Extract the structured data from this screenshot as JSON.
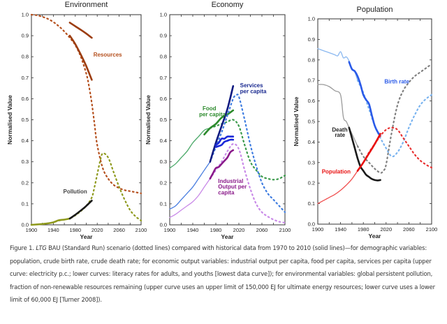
{
  "caption": {
    "prefix": "Figure 1. ",
    "italic": "LTG",
    "text": " BAU (Standard Run) scenario (dotted lines) compared with historical data from 1970 to 2010 (solid lines)—for demographic variables: population, crude birth rate, crude death rate; for economic output variables: industrial output per capita, food per capita, services per capita (upper curve: electricity p.c.; lower curves: literacy rates for adults, and youths [lowest data curve]); for environmental variables: global persistent pollution, fraction of non-renewable resources remaining (upper curve uses an upper limit of 150,000 EJ for ultimate energy resources; lower curve uses a lower limit of 60,000 EJ [Turner 2008])."
  },
  "chart_data": [
    {
      "id": "environment",
      "type": "line",
      "title": "Environment",
      "xlabel": "Year",
      "ylabel": "Normalised Value",
      "xlim": [
        1900,
        2100
      ],
      "ylim": [
        0,
        1
      ],
      "xticks": [
        1900,
        1940,
        1980,
        2020,
        2060,
        2100
      ],
      "yticks": [
        "0.0",
        "0.1",
        "0.2",
        "0.3",
        "0.4",
        "0.5",
        "0.6",
        "0.7",
        "0.8",
        "0.9",
        "1.0"
      ],
      "series": [
        {
          "name": "Resources (model)",
          "style": "dotted",
          "color": "#b5501e",
          "x": [
            1900,
            1910,
            1920,
            1930,
            1940,
            1950,
            1960,
            1970,
            1980,
            1990,
            2000,
            2005,
            2010,
            2015,
            2020,
            2030,
            2040,
            2050,
            2060,
            2070,
            2080,
            2090,
            2100
          ],
          "y": [
            1.0,
            0.997,
            0.99,
            0.98,
            0.965,
            0.945,
            0.92,
            0.89,
            0.855,
            0.8,
            0.72,
            0.66,
            0.58,
            0.48,
            0.38,
            0.27,
            0.22,
            0.19,
            0.175,
            0.165,
            0.16,
            0.155,
            0.15
          ]
        },
        {
          "name": "Resources (data, upper)",
          "style": "solid",
          "color": "#9c3d10",
          "x": [
            1970,
            1980,
            1990,
            2000,
            2010
          ],
          "y": [
            0.962,
            0.945,
            0.928,
            0.91,
            0.89
          ]
        },
        {
          "name": "Resources (data, lower)",
          "style": "solid",
          "color": "#9c3d10",
          "x": [
            1970,
            1980,
            1990,
            2000,
            2010
          ],
          "y": [
            0.9,
            0.86,
            0.81,
            0.755,
            0.69
          ]
        },
        {
          "name": "Pollution (model)",
          "style": "dotted",
          "color": "#8f9a1e",
          "x": [
            1900,
            1910,
            1920,
            1930,
            1940,
            1950,
            1960,
            1970,
            1980,
            1990,
            2000,
            2010,
            2015,
            2020,
            2025,
            2030,
            2040,
            2050,
            2060,
            2070,
            2080,
            2090,
            2100
          ],
          "y": [
            0.0,
            0.002,
            0.004,
            0.007,
            0.012,
            0.02,
            0.025,
            0.03,
            0.045,
            0.065,
            0.09,
            0.13,
            0.18,
            0.24,
            0.3,
            0.34,
            0.32,
            0.25,
            0.18,
            0.12,
            0.07,
            0.04,
            0.02
          ]
        },
        {
          "name": "Pollution (data)",
          "style": "solid",
          "color": "#8f9a1e",
          "x": [
            1900,
            1910,
            1920,
            1930,
            1940,
            1950,
            1960,
            1970
          ],
          "y": [
            0.0,
            0.002,
            0.004,
            0.007,
            0.012,
            0.022,
            0.025,
            0.03
          ]
        },
        {
          "name": "Pollution (data 1970-2010)",
          "style": "solid",
          "color": "#1a1a1a",
          "x": [
            1970,
            1980,
            1990,
            2000,
            2010
          ],
          "y": [
            0.03,
            0.048,
            0.068,
            0.09,
            0.115
          ]
        }
      ],
      "labels": [
        {
          "text": "Resources",
          "color": "#b5501e",
          "x": 2013,
          "y": 0.8
        },
        {
          "text": "Pollution",
          "color": "#444444",
          "x": 1958,
          "y": 0.15
        }
      ]
    },
    {
      "id": "economy",
      "type": "line",
      "title": "Economy",
      "xlabel": "Year",
      "ylabel": "Normalised Value",
      "xlim": [
        1900,
        2100
      ],
      "ylim": [
        0,
        1
      ],
      "xticks": [
        1900,
        1940,
        1980,
        2020,
        2060,
        2100
      ],
      "yticks": [
        "0.0",
        "0.1",
        "0.2",
        "0.3",
        "0.4",
        "0.5",
        "0.6",
        "0.7",
        "0.8",
        "0.9",
        "1.0"
      ],
      "series": [
        {
          "name": "Food per capita (model)",
          "style": "dotted",
          "color": "#3a9a4a",
          "x": [
            1970,
            1980,
            1990,
            2000,
            2010,
            2020,
            2030,
            2040,
            2050,
            2060,
            2070,
            2080,
            2090,
            2100
          ],
          "y": [
            0.46,
            0.47,
            0.48,
            0.49,
            0.5,
            0.47,
            0.38,
            0.3,
            0.26,
            0.23,
            0.22,
            0.215,
            0.22,
            0.235
          ]
        },
        {
          "name": "Food per capita (model, 1900-1970)",
          "style": "solid-thin",
          "color": "#4aa868",
          "x": [
            1900,
            1910,
            1920,
            1930,
            1940,
            1950,
            1960,
            1970
          ],
          "y": [
            0.27,
            0.29,
            0.32,
            0.35,
            0.39,
            0.42,
            0.45,
            0.46
          ]
        },
        {
          "name": "Food per capita (data)",
          "style": "solid",
          "color": "#2c8a2c",
          "x": [
            1960,
            1970,
            1980,
            1990,
            2000,
            2010
          ],
          "y": [
            0.43,
            0.46,
            0.48,
            0.51,
            0.525,
            0.545
          ]
        },
        {
          "name": "Services per capita (model)",
          "style": "dotted",
          "color": "#3f7de0",
          "x": [
            1970,
            1980,
            1990,
            2000,
            2010,
            2015,
            2020,
            2030,
            2040,
            2050,
            2060,
            2070,
            2080,
            2090,
            2100
          ],
          "y": [
            0.3,
            0.37,
            0.44,
            0.52,
            0.6,
            0.615,
            0.61,
            0.5,
            0.38,
            0.28,
            0.2,
            0.15,
            0.12,
            0.09,
            0.06
          ]
        },
        {
          "name": "Services per capita (model, 1900-1970)",
          "style": "solid-thin",
          "color": "#4a7ee0",
          "x": [
            1900,
            1910,
            1920,
            1930,
            1940,
            1950,
            1960,
            1970
          ],
          "y": [
            0.075,
            0.09,
            0.12,
            0.15,
            0.18,
            0.22,
            0.26,
            0.3
          ]
        },
        {
          "name": "Electricity p.c. (data)",
          "style": "solid",
          "color": "#101a80",
          "x": [
            1970,
            1980,
            1990,
            2000,
            2010
          ],
          "y": [
            0.3,
            0.39,
            0.47,
            0.55,
            0.66
          ]
        },
        {
          "name": "Literacy adults (data)",
          "style": "solid",
          "color": "#1a28d8",
          "x": [
            1980,
            1985,
            1990,
            1995,
            2000,
            2005,
            2010
          ],
          "y": [
            0.38,
            0.39,
            0.41,
            0.41,
            0.42,
            0.42,
            0.42
          ]
        },
        {
          "name": "Literacy youths (data)",
          "style": "solid",
          "color": "#1a28d8",
          "x": [
            1980,
            1985,
            1990,
            1995,
            2000,
            2005,
            2010
          ],
          "y": [
            0.37,
            0.375,
            0.38,
            0.395,
            0.4,
            0.405,
            0.405
          ]
        },
        {
          "name": "Industrial output per capita (model)",
          "style": "dotted",
          "color": "#c98ae8",
          "x": [
            1970,
            1980,
            1990,
            2000,
            2010,
            2020,
            2030,
            2040,
            2050,
            2060,
            2070,
            2080,
            2090,
            2100
          ],
          "y": [
            0.22,
            0.26,
            0.3,
            0.35,
            0.385,
            0.36,
            0.26,
            0.17,
            0.1,
            0.06,
            0.04,
            0.025,
            0.015,
            0.01
          ]
        },
        {
          "name": "Industrial output per capita (model, 1900-1970)",
          "style": "solid-thin",
          "color": "#c98ae8",
          "x": [
            1900,
            1910,
            1920,
            1930,
            1940,
            1950,
            1960,
            1970
          ],
          "y": [
            0.035,
            0.05,
            0.07,
            0.09,
            0.11,
            0.14,
            0.18,
            0.22
          ]
        },
        {
          "name": "Industrial output per capita (data)",
          "style": "solid",
          "color": "#8a1a8a",
          "x": [
            1970,
            1975,
            1980,
            1985,
            1990,
            1995,
            2000,
            2005,
            2010
          ],
          "y": [
            0.22,
            0.245,
            0.27,
            0.275,
            0.29,
            0.305,
            0.32,
            0.345,
            0.355
          ]
        }
      ],
      "labels": [
        {
          "text": "Food",
          "color": "#2c8a2c",
          "x": 1957,
          "y": 0.545
        },
        {
          "text": "per capita",
          "color": "#2c8a2c",
          "x": 1951,
          "y": 0.517
        },
        {
          "text": "Services",
          "color": "#1a2a90",
          "x": 2022,
          "y": 0.655
        },
        {
          "text": "per capita",
          "color": "#1a2a90",
          "x": 2022,
          "y": 0.627
        },
        {
          "text": "Industrial",
          "color": "#8a1a8a",
          "x": 1984,
          "y": 0.2
        },
        {
          "text": "Output per",
          "color": "#8a1a8a",
          "x": 1984,
          "y": 0.172
        },
        {
          "text": "capita",
          "color": "#8a1a8a",
          "x": 1984,
          "y": 0.144
        }
      ]
    },
    {
      "id": "population",
      "type": "line",
      "title": "Population",
      "xlabel": "Year",
      "ylabel": "Normalised Value",
      "xlim": [
        1900,
        2100
      ],
      "ylim": [
        0,
        1
      ],
      "xticks": [
        1900,
        1940,
        1980,
        2020,
        2060,
        2100
      ],
      "yticks": [
        "0.0",
        "0.1",
        "0.2",
        "0.3",
        "0.4",
        "0.5",
        "0.6",
        "0.7",
        "0.8",
        "0.9",
        "1.0"
      ],
      "series": [
        {
          "name": "Birth rate (model, 1900-1970)",
          "style": "solid-thin",
          "color": "#8ab8f0",
          "x": [
            1900,
            1910,
            1920,
            1930,
            1935,
            1940,
            1945,
            1950,
            1955,
            1960,
            1965,
            1970
          ],
          "y": [
            0.855,
            0.845,
            0.835,
            0.825,
            0.82,
            0.84,
            0.81,
            0.815,
            0.795,
            0.76,
            0.74,
            0.7
          ]
        },
        {
          "name": "Birth rate (model)",
          "style": "dotted",
          "color": "#7ab4f0",
          "x": [
            1970,
            1980,
            1990,
            2000,
            2010,
            2020,
            2030,
            2040,
            2050,
            2060,
            2070,
            2080,
            2090,
            2100
          ],
          "y": [
            0.7,
            0.64,
            0.56,
            0.48,
            0.42,
            0.37,
            0.33,
            0.35,
            0.4,
            0.47,
            0.53,
            0.58,
            0.61,
            0.63
          ]
        },
        {
          "name": "Birth rate (data)",
          "style": "solid",
          "color": "#2a5ae8",
          "x": [
            1955,
            1960,
            1965,
            1970,
            1975,
            1980,
            1985,
            1990,
            1995,
            2000,
            2005,
            2010
          ],
          "y": [
            0.79,
            0.755,
            0.745,
            0.72,
            0.68,
            0.63,
            0.605,
            0.585,
            0.53,
            0.48,
            0.45,
            0.43
          ]
        },
        {
          "name": "Death rate (model, 1900-1970)",
          "style": "solid-thin",
          "color": "#9a9a9a",
          "x": [
            1900,
            1910,
            1920,
            1930,
            1940,
            1945,
            1950,
            1955,
            1960,
            1970
          ],
          "y": [
            0.68,
            0.68,
            0.67,
            0.65,
            0.63,
            0.52,
            0.5,
            0.47,
            0.44,
            0.38
          ]
        },
        {
          "name": "Death rate (model)",
          "style": "dotted",
          "color": "#808080",
          "x": [
            1970,
            1980,
            1990,
            2000,
            2010,
            2015,
            2020,
            2030,
            2040,
            2050,
            2060,
            2070,
            2080,
            2090,
            2100
          ],
          "y": [
            0.38,
            0.33,
            0.3,
            0.27,
            0.25,
            0.26,
            0.29,
            0.45,
            0.58,
            0.65,
            0.69,
            0.72,
            0.74,
            0.76,
            0.78
          ]
        },
        {
          "name": "Death rate (data)",
          "style": "solid",
          "color": "#1a1a1a",
          "x": [
            1955,
            1960,
            1965,
            1970,
            1975,
            1980,
            1985,
            1990,
            1995,
            2000,
            2005,
            2010
          ],
          "y": [
            0.47,
            0.42,
            0.37,
            0.32,
            0.28,
            0.26,
            0.24,
            0.23,
            0.22,
            0.215,
            0.213,
            0.215
          ]
        },
        {
          "name": "Population (model, 1900-1970)",
          "style": "solid-thin",
          "color": "#f05050",
          "x": [
            1900,
            1910,
            1920,
            1930,
            1940,
            1950,
            1960,
            1970
          ],
          "y": [
            0.1,
            0.115,
            0.13,
            0.145,
            0.165,
            0.19,
            0.22,
            0.26
          ]
        },
        {
          "name": "Population (model)",
          "style": "dotted",
          "color": "#e83030",
          "x": [
            1970,
            1980,
            1990,
            2000,
            2010,
            2020,
            2030,
            2040,
            2050,
            2060,
            2070,
            2080,
            2090,
            2100
          ],
          "y": [
            0.26,
            0.3,
            0.35,
            0.39,
            0.43,
            0.46,
            0.47,
            0.46,
            0.42,
            0.38,
            0.34,
            0.31,
            0.29,
            0.275
          ]
        },
        {
          "name": "Population (data)",
          "style": "solid",
          "color": "#e81010",
          "x": [
            1970,
            1980,
            1990,
            2000,
            2010
          ],
          "y": [
            0.26,
            0.3,
            0.345,
            0.39,
            0.44
          ]
        }
      ],
      "labels": [
        {
          "text": "Birth rate",
          "color": "#2a5ae8",
          "x": 2017,
          "y": 0.685
        },
        {
          "text": "Death",
          "color": "#222222",
          "x": 1925,
          "y": 0.45
        },
        {
          "text": "rate",
          "color": "#222222",
          "x": 1930,
          "y": 0.425
        },
        {
          "text": "Population",
          "color": "#e81010",
          "x": 1907,
          "y": 0.247
        }
      ]
    }
  ]
}
